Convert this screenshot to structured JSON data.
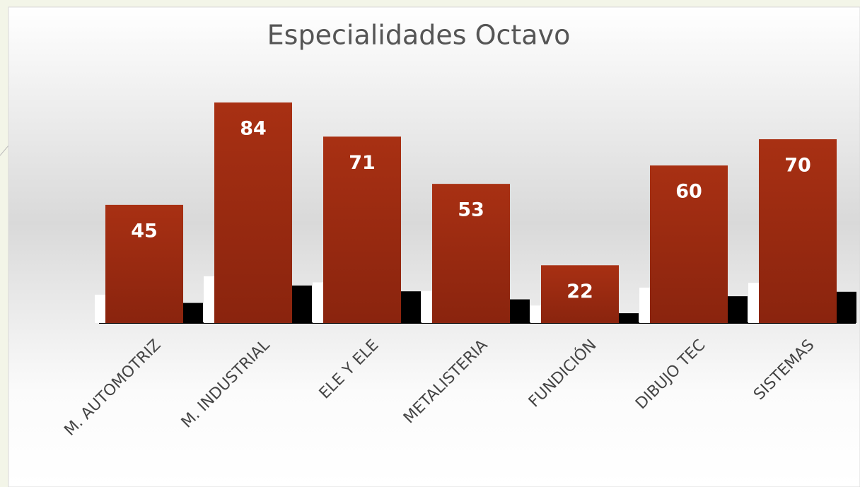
{
  "chart_data": {
    "type": "bar",
    "title": "Especialidades Octavo",
    "categories": [
      "M. AUTOMOTRIZ",
      "M. INDUSTRIAL",
      "ELE Y ELE",
      "METALISTERIA",
      "FUNDICIÓN",
      "DIBUJO TEC",
      "SISTEMAS"
    ],
    "values": [
      45,
      84,
      71,
      53,
      22,
      60,
      70
    ],
    "color": "#a12e12"
  }
}
